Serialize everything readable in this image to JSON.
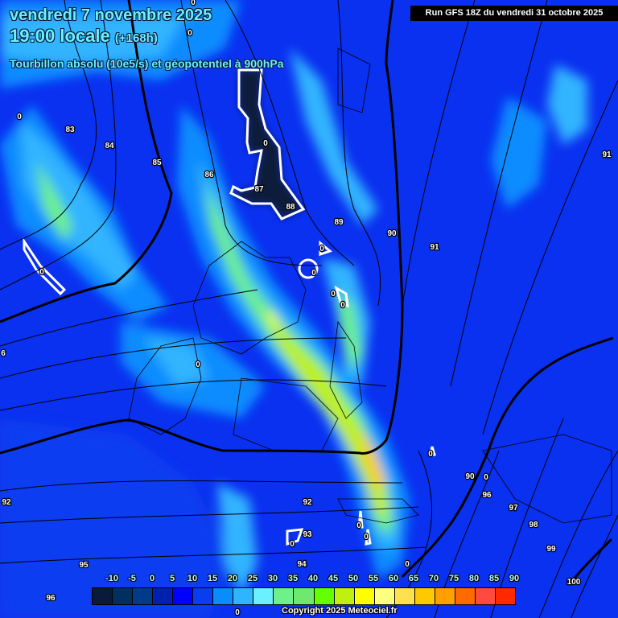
{
  "header": {
    "date": "vendredi 7 novembre 2025",
    "time": "19:00 locale",
    "lead": "(+168h)",
    "field": "Tourbillon absolu (10e5/s) et géopotentiel à 900hPa",
    "run": "Run GFS 18Z du vendredi 31 octobre 2025"
  },
  "map": {
    "field_colors": {
      "base": "#0a30f0",
      "medium": "#0a8cff",
      "light": "#30b4ff",
      "pale": "#6cf0ff",
      "green": "#6ef08a",
      "lime": "#64ff00",
      "yellow": "#ffff00",
      "orange": "#ffa000",
      "dark": "#0a1a3a"
    },
    "geopotential_labels": [
      "83",
      "84",
      "85",
      "86",
      "87",
      "88",
      "89",
      "90",
      "91",
      "91",
      "92",
      "92",
      "93",
      "94",
      "95",
      "96",
      "96",
      "97",
      "98",
      "99",
      "100",
      "6",
      "90"
    ],
    "vorticity_zero_labels": [
      "0",
      "0",
      "0",
      "0",
      "0",
      "0",
      "0",
      "0",
      "0",
      "0",
      "0",
      "0",
      "0",
      "0",
      "0",
      "0",
      "0"
    ]
  },
  "legend": {
    "labels": [
      "-10",
      "-5",
      "0",
      "5",
      "10",
      "15",
      "20",
      "25",
      "30",
      "35",
      "40",
      "45",
      "50",
      "55",
      "60",
      "65",
      "70",
      "75",
      "80",
      "85",
      "90"
    ],
    "colors": [
      "#0a1a3a",
      "#003060",
      "#003a8a",
      "#0020b0",
      "#0000ff",
      "#0a3cf0",
      "#0a8cff",
      "#30b4ff",
      "#6cf0ff",
      "#6ef08a",
      "#6ee86e",
      "#64ff00",
      "#c0f010",
      "#ffff00",
      "#ffff80",
      "#ffe050",
      "#ffc800",
      "#ffa000",
      "#ff6a00",
      "#ff4a40",
      "#ff2800"
    ]
  },
  "copyright": "Copyright 2025 Meteociel.fr"
}
